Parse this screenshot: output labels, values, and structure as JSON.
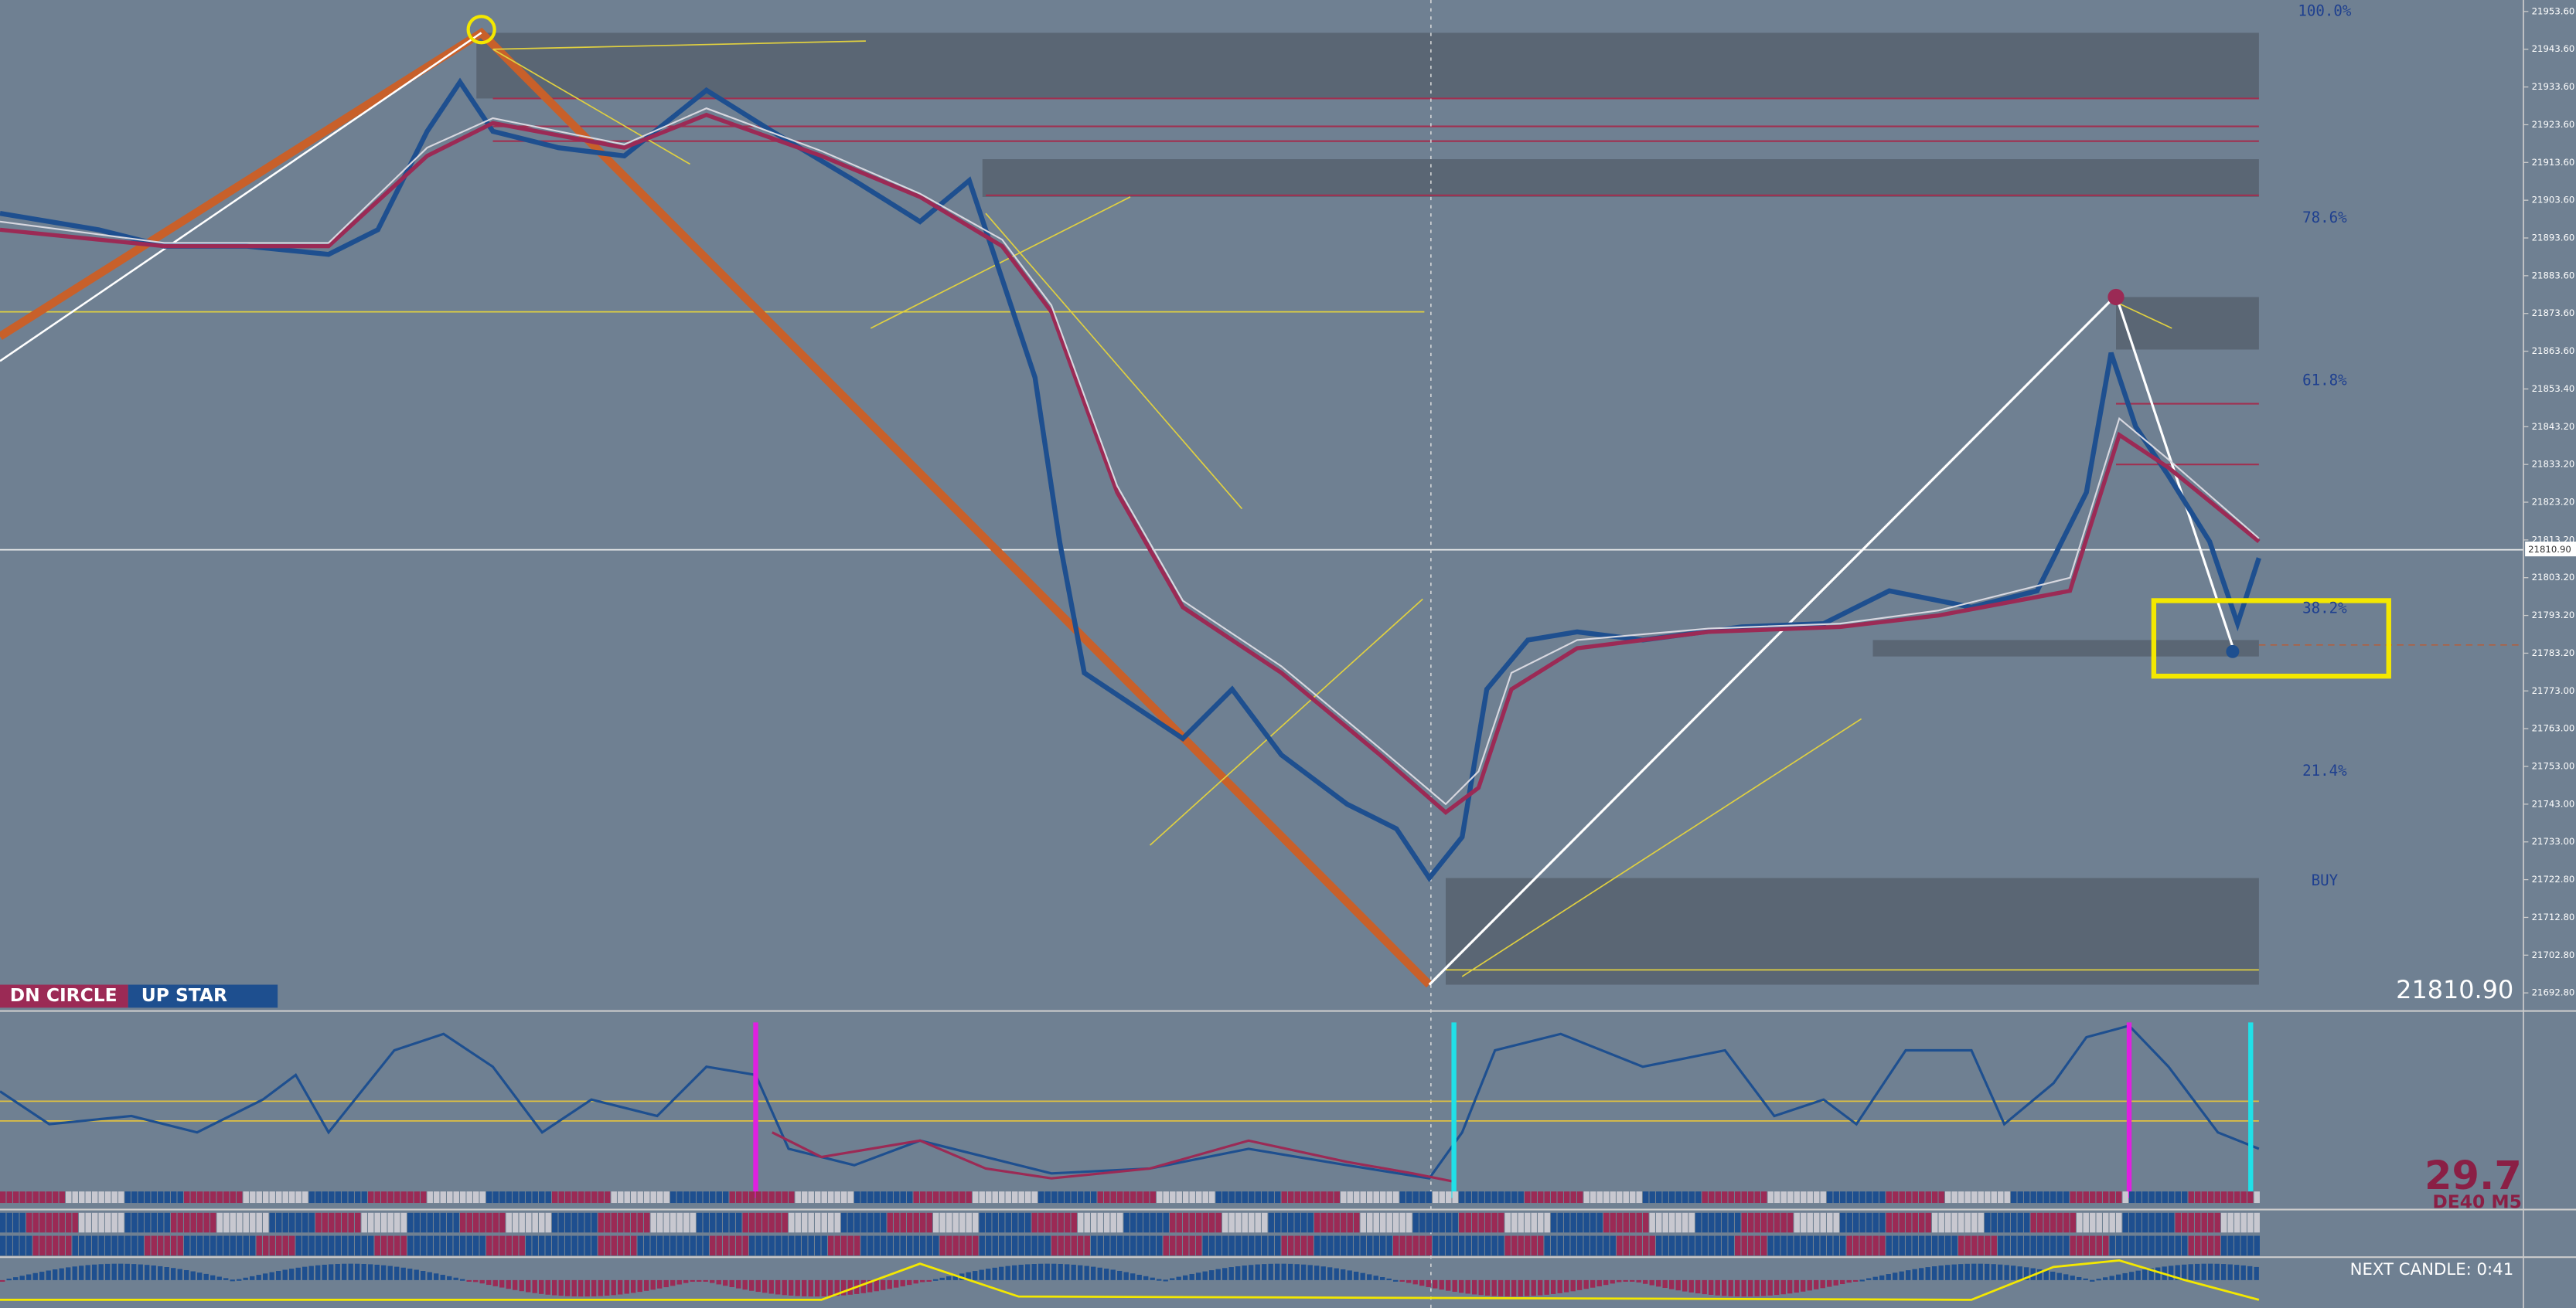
{
  "price_axis": {
    "labels": [
      "21953.60",
      "21943.60",
      "21933.60",
      "21923.60",
      "21913.60",
      "21903.60",
      "21893.60",
      "21883.60",
      "21873.60",
      "21863.60",
      "21853.40",
      "21843.20",
      "21833.20",
      "21823.20",
      "21813.20",
      "21803.20",
      "21793.20",
      "21783.20",
      "21773.00",
      "21763.00",
      "21753.00",
      "21743.00",
      "21733.00",
      "21722.80",
      "21712.80",
      "21702.80",
      "21692.80"
    ],
    "current_price_tag": "21810.90"
  },
  "fib_levels": [
    "100.0%",
    "78.6%",
    "61.8%",
    "38.2%",
    "21.4%",
    "BUY"
  ],
  "legend": {
    "down": "DN CIRCLE",
    "up": "UP STAR"
  },
  "current_price": "21810.90",
  "indicator": {
    "value": "29.7",
    "symbol": "DE40 M5"
  },
  "timer": "NEXT CANDLE: 0:41"
}
